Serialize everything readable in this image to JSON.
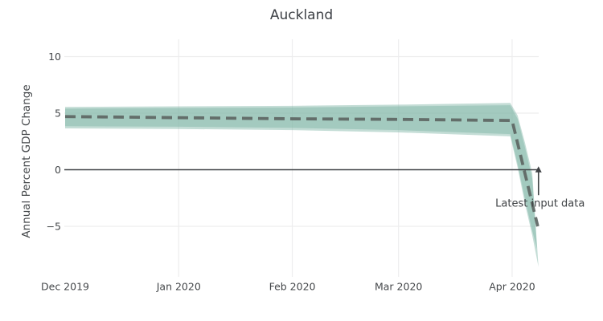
{
  "page": {
    "background": "#ffffff"
  },
  "chart_data": {
    "type": "line",
    "title": "Auckland",
    "ylabel": "Annual Percent GDP Change",
    "xlabel": "",
    "grid": true,
    "legend": "none",
    "x_unit_days_from": "Dec 2019",
    "xlim_days": [
      0,
      129.5
    ],
    "ylim": [
      -9.6,
      11.5
    ],
    "x_ticks": [
      {
        "day": 0,
        "label": "Dec 2019",
        "grid": false
      },
      {
        "day": 31,
        "label": "Jan 2020",
        "grid": true
      },
      {
        "day": 62,
        "label": "Feb 2020",
        "grid": true
      },
      {
        "day": 91,
        "label": "Mar 2020",
        "grid": true
      },
      {
        "day": 122,
        "label": "Apr 2020",
        "grid": true
      }
    ],
    "y_ticks": [
      {
        "value": 10,
        "label": "10",
        "grid": true
      },
      {
        "value": 5,
        "label": "5",
        "grid": true
      },
      {
        "value": 0,
        "label": "0",
        "grid": false
      },
      {
        "value": -5,
        "label": "−5",
        "grid": true
      }
    ],
    "zero_line": {
      "show": true,
      "color": "#3f4245"
    },
    "series": [
      {
        "name": "outer-confidence-band",
        "type": "band",
        "fill": "rgba(124,180,165,0.45)",
        "x_days": [
          0,
          31,
          62,
          91,
          121.5,
          123.5,
          125.5,
          127.5,
          129.2
        ],
        "upper": [
          5.55,
          5.6,
          5.65,
          5.75,
          5.9,
          4.8,
          2.4,
          -0.3,
          -8.6
        ],
        "lower": [
          3.65,
          3.6,
          3.5,
          3.3,
          2.95,
          0.2,
          -3.0,
          -5.8,
          -8.6
        ]
      },
      {
        "name": "inner-confidence-band",
        "type": "band",
        "fill": "rgba(124,180,165,0.45)",
        "x_days": [
          0,
          31,
          62,
          91,
          121.5,
          123.5,
          125.5,
          127.5,
          128.8
        ],
        "upper": [
          5.4,
          5.45,
          5.5,
          5.6,
          5.7,
          4.5,
          2.0,
          -0.8,
          -7.0
        ],
        "lower": [
          3.85,
          3.8,
          3.7,
          3.5,
          3.15,
          0.5,
          -2.6,
          -5.4,
          -7.0
        ]
      },
      {
        "name": "gdp-nowcast-line",
        "type": "line",
        "style": "dashed",
        "color": "#5d6663",
        "width": 3.8,
        "x_days": [
          0,
          31,
          62,
          91,
          122,
          129
        ],
        "y": [
          4.7,
          4.6,
          4.5,
          4.45,
          4.35,
          -5.0
        ]
      }
    ],
    "annotation": {
      "text": "Latest input data",
      "x_day": 129.2,
      "arrow_from_y": -2.25,
      "arrow_tip_y": 0.3,
      "text_y": -3.25,
      "color": "#3f4245"
    },
    "grid_color": "#ededee",
    "text_color": "#444649"
  }
}
